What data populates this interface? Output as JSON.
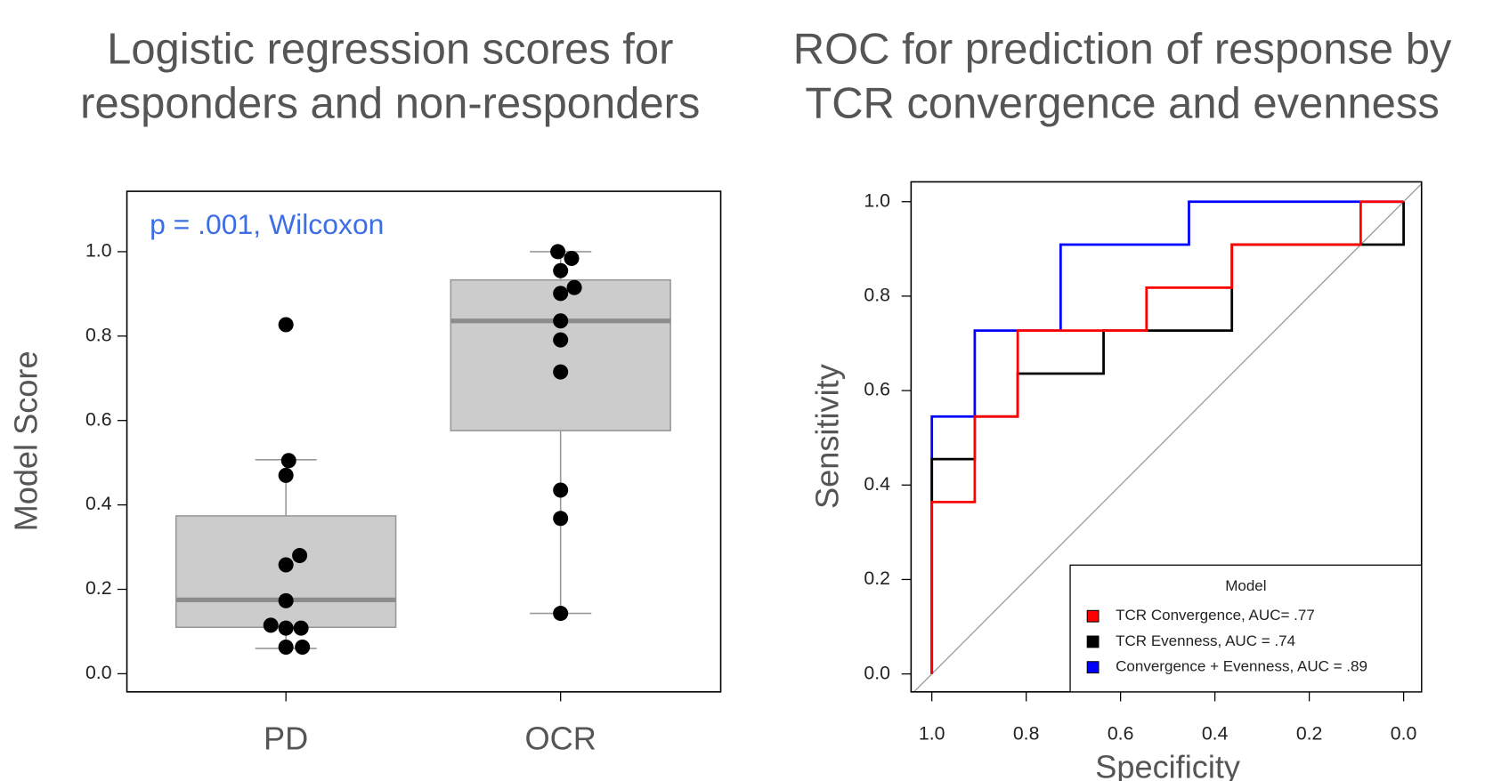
{
  "chart_data": [
    {
      "type": "box",
      "title": [
        "Logistic regression scores for",
        "responders and non-responders"
      ],
      "annotation": "p = .001, Wilcoxon",
      "annotation_color": "#3d6ee6",
      "ylabel": "Model Score",
      "categories": [
        "PD",
        "OCR"
      ],
      "boxes": [
        {
          "whisker_low": 0.06,
          "q1": 0.11,
          "median": 0.175,
          "q3": 0.374,
          "whisker_high": 0.507
        },
        {
          "whisker_low": 0.143,
          "q1": 0.576,
          "median": 0.836,
          "q3": 0.933,
          "whisker_high": 1.0
        }
      ],
      "box_color": "#cccccc",
      "points": {
        "color": "#000000",
        "x": [
          1.0,
          1.01,
          1.0,
          1.05,
          1.0,
          1.0,
          0.945,
          1.0,
          1.055,
          1.0,
          1.06,
          1.99,
          2.04,
          2.0,
          2.05,
          2.0,
          2.0,
          2.0,
          2.0,
          2.0,
          2.0,
          2.0
        ],
        "y": [
          0.827,
          0.505,
          0.47,
          0.28,
          0.258,
          0.173,
          0.115,
          0.108,
          0.108,
          0.063,
          0.063,
          1.0,
          0.984,
          0.955,
          0.915,
          0.901,
          0.836,
          0.791,
          0.715,
          0.435,
          0.368,
          0.143
        ]
      },
      "xlim": [
        0.421,
        2.583
      ],
      "ylim": [
        -0.043,
        1.143
      ],
      "yticks": [
        {
          "value": 0,
          "label": "0.0"
        },
        0.2,
        0.4,
        0.6,
        0.8,
        {
          "value": 1,
          "label": "1.0"
        }
      ]
    },
    {
      "type": "roc",
      "title": [
        "ROC for prediction of response by",
        "TCR convergence and evenness"
      ],
      "xlabel": "Specificity",
      "ylabel": "Sensitivity",
      "xlim": [
        1.044,
        -0.038
      ],
      "ylim": [
        -0.038,
        1.042
      ],
      "xticks": [
        {
          "value": 1,
          "label": "1.0"
        },
        0.8,
        0.6,
        0.4,
        0.2,
        {
          "value": 0,
          "label": "0.0"
        }
      ],
      "yticks": [
        {
          "value": 0,
          "label": "0.0"
        },
        0.2,
        0.4,
        0.6,
        0.8,
        {
          "value": 1,
          "label": "1.0"
        }
      ],
      "legend_title": "Model",
      "legend": "bottom-right",
      "series": [
        {
          "name": "Convergence + Evenness, AUC = .89",
          "color": "#0000ff",
          "x": [
            1,
            1,
            0.909,
            0.909,
            0.727,
            0.727,
            0.455,
            0.455,
            0
          ],
          "values": [
            0,
            0.545,
            0.545,
            0.727,
            0.727,
            0.909,
            0.909,
            1,
            1
          ]
        },
        {
          "name": "TCR Evenness, AUC = .74",
          "color": "#000000",
          "x": [
            1,
            1,
            0.909,
            0.909,
            0.818,
            0.818,
            0.636,
            0.636,
            0.364,
            0.364,
            0,
            0
          ],
          "values": [
            0,
            0.455,
            0.455,
            0.545,
            0.545,
            0.636,
            0.636,
            0.727,
            0.727,
            0.909,
            0.909,
            1
          ]
        },
        {
          "name": "TCR Convergence, AUC= .77",
          "color": "#ff0000",
          "x": [
            1,
            1,
            0.909,
            0.909,
            0.818,
            0.818,
            0.545,
            0.545,
            0.364,
            0.364,
            0.091,
            0.091,
            0
          ],
          "values": [
            0,
            0.364,
            0.364,
            0.545,
            0.545,
            0.727,
            0.727,
            0.818,
            0.818,
            0.909,
            0.909,
            1,
            1
          ]
        }
      ],
      "legend_order": [
        2,
        1,
        0
      ]
    }
  ]
}
